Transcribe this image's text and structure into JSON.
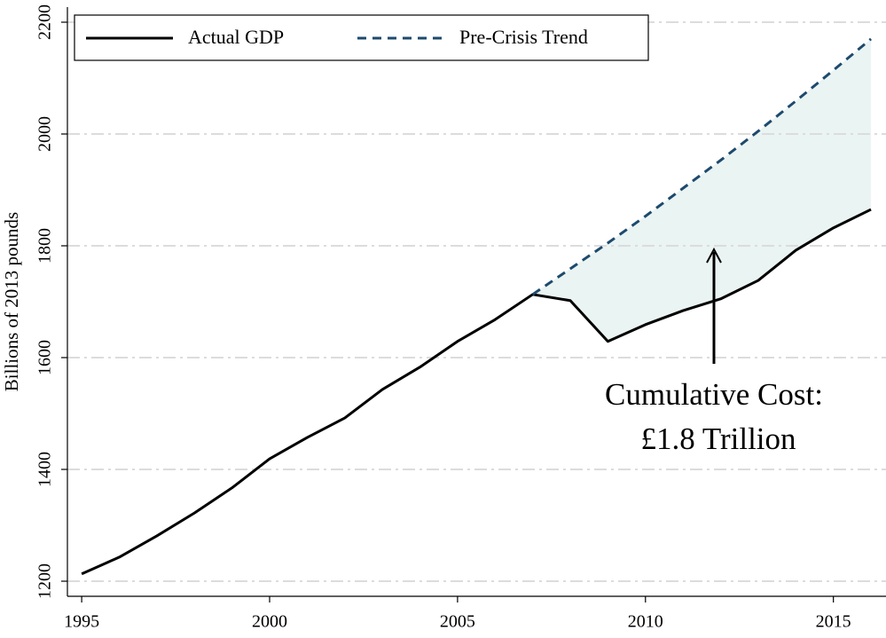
{
  "chart_data": {
    "type": "line",
    "y_label": "Billions of 2013 pounds",
    "x": [
      1995,
      1996,
      1997,
      1998,
      1999,
      2000,
      2001,
      2002,
      2003,
      2004,
      2005,
      2006,
      2007,
      2008,
      2009,
      2010,
      2011,
      2012,
      2013,
      2014,
      2015,
      2016
    ],
    "series": [
      {
        "name": "Actual GDP",
        "color": "#000000",
        "dashed": false,
        "values": [
          1213,
          1243,
          1281,
          1322,
          1367,
          1419,
          1457,
          1492,
          1543,
          1583,
          1629,
          1668,
          1713,
          1702,
          1629,
          1659,
          1684,
          1705,
          1738,
          1792,
          1832,
          1865
        ]
      },
      {
        "name": "Pre-Crisis Trend",
        "color": "#1d4a6e",
        "dashed": true,
        "values": [
          null,
          null,
          null,
          null,
          null,
          null,
          null,
          null,
          null,
          null,
          null,
          null,
          1713,
          1759,
          1805,
          1853,
          1903,
          1953,
          2005,
          2059,
          2114,
          2170
        ]
      }
    ],
    "gap_fill_color": "#eaf4f2",
    "xlim": [
      1994.62,
      2016.4
    ],
    "xticks": [
      1995,
      2000,
      2005,
      2010,
      2015
    ],
    "ylim": [
      1173,
      2227
    ],
    "yticks": [
      1200,
      1400,
      1600,
      1800,
      2000,
      2200
    ],
    "grid": true,
    "legend": "top-left",
    "annotation": [
      "Cumulative Cost:",
      "£1.8 Trillion"
    ]
  }
}
